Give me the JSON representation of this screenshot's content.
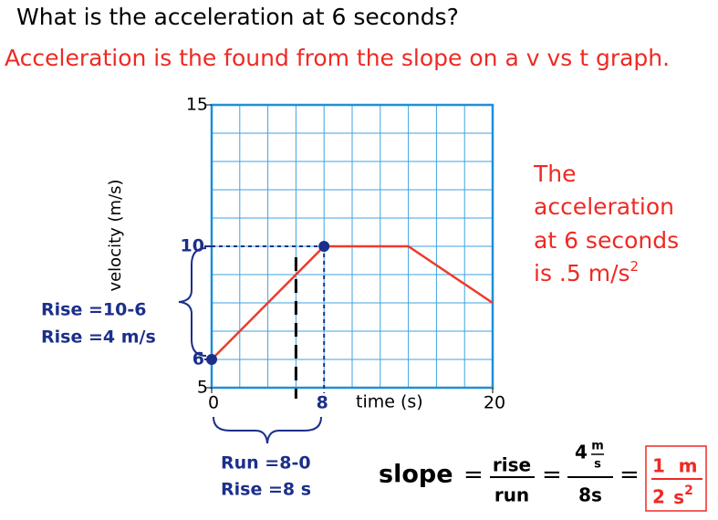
{
  "question": "What is the acceleration at 6 seconds?",
  "explanation": "Acceleration is the found from the slope on a v vs t graph.",
  "chart_data": {
    "type": "line",
    "xlabel": "time (s)",
    "ylabel": "velocity (m/s)",
    "x": [
      0,
      8,
      14,
      20
    ],
    "values": [
      6,
      10,
      10,
      8
    ],
    "color": "#ee3a2c",
    "xlim": [
      0,
      20
    ],
    "ylim": [
      5,
      15
    ],
    "xticks": [
      0,
      20
    ],
    "yticks": [
      5,
      15
    ],
    "highlighted_xticks": [
      8
    ],
    "highlighted_yticks": [
      6,
      10
    ],
    "marker_x": 6,
    "grid": true
  },
  "rise_notes": [
    "Rise =10-6",
    "Rise =4 m/s"
  ],
  "run_notes": [
    "Run =8-0",
    "Rise =8 s"
  ],
  "answer_lines": [
    "The",
    "acceleration",
    "at 6 seconds",
    "is .5 m/s"
  ],
  "answer_superscript": "2",
  "formula": {
    "lhs": "slope",
    "equals": "=",
    "num1": "rise",
    "den1": "run",
    "num2": "4",
    "num2_unit_top": "m",
    "num2_unit_bottom": "s",
    "den2": "8s",
    "result_num": "1",
    "result_num_unit": "m",
    "result_den": "2",
    "result_den_unit": "s",
    "result_den_exp": "2"
  }
}
